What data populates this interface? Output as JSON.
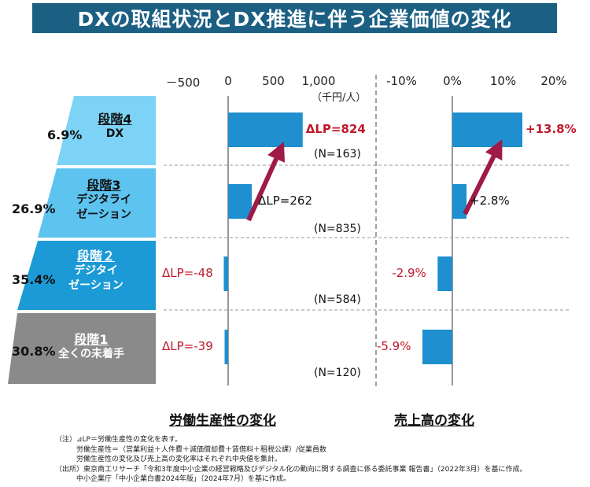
{
  "title": "DXの取組状況とDX推進に伴う企業価値の変化",
  "productivity_unit": "（千円/人）",
  "subtitle_left": "労働生産性の変化",
  "subtitle_right": "売上高の変化",
  "stages": [
    {
      "head": "段階4",
      "line1": "DX",
      "line2": "",
      "share": "6.9%",
      "n": "(N=163)",
      "color": "#7dd3f5"
    },
    {
      "head": "段階3",
      "line1": "デジタライ",
      "line2": "ゼーション",
      "share": "26.9%",
      "n": "(N=835)",
      "color": "#5dc3ef"
    },
    {
      "head": "段階２",
      "line1": "デジタイ",
      "line2": "ゼーション",
      "share": "35.4%",
      "n": "(N=584)",
      "color": "#1c9ad6"
    },
    {
      "head": "段階1",
      "line1": "全くの未着手",
      "line2": "",
      "share": "30.8%",
      "n": "(N=120)",
      "color": "#8a8a8a"
    }
  ],
  "colors": {
    "bar": "#1f8fcf",
    "arrow": "#9e1a47",
    "negative_label": "#c0182b",
    "title_bg": "#1b5f83"
  },
  "notes": [
    "（注）⊿LP＝労働生産性の変化を表す。",
    "　　　労働生産性＝（営業利益＋人件費＋減価償却費＋賃借料＋租税公課）/従業員数",
    "　　　労働生産性の変化及び売上高の変化率はそれぞれ中央値を集計。",
    "（出所）東京商工リサーチ「令和3年度中小企業の経営戦略及びデジタル化の動向に関する調査に係る委託事業 報告書」（2022年3月）を基に作成。",
    "　　　中小企業庁「中小企業白書2024年版」（2024年7月）を基に作成。"
  ],
  "chart_data": [
    {
      "type": "bar",
      "orientation": "horizontal",
      "categories": [
        "段階4 DX",
        "段階3 デジタライゼーション",
        "段階２ デジタイゼーション",
        "段階1 全くの未着手"
      ],
      "values": [
        824,
        262,
        -48,
        -39
      ],
      "data_labels": [
        "ΔLP=824",
        "ΔLP=262",
        "ΔLP=-48",
        "ΔLP=-39"
      ],
      "xlim": [
        -500,
        1000
      ],
      "ticks": [
        -500,
        0,
        500,
        1000
      ],
      "tick_labels": [
        "－500",
        "0",
        "500",
        "1,000"
      ]
    },
    {
      "type": "bar",
      "orientation": "horizontal",
      "categories": [
        "段階4 DX",
        "段階3 デジタライゼーション",
        "段階２ デジタイゼーション",
        "段階1 全くの未着手"
      ],
      "values": [
        13.8,
        2.8,
        -2.9,
        -5.9
      ],
      "data_labels": [
        "+13.8%",
        "+2.8%",
        "-2.9%",
        "-5.9%"
      ],
      "xlim": [
        -10,
        20
      ],
      "ticks": [
        -10,
        0,
        10,
        20
      ],
      "tick_labels": [
        "-10%",
        "0%",
        "10%",
        "20%"
      ]
    }
  ]
}
